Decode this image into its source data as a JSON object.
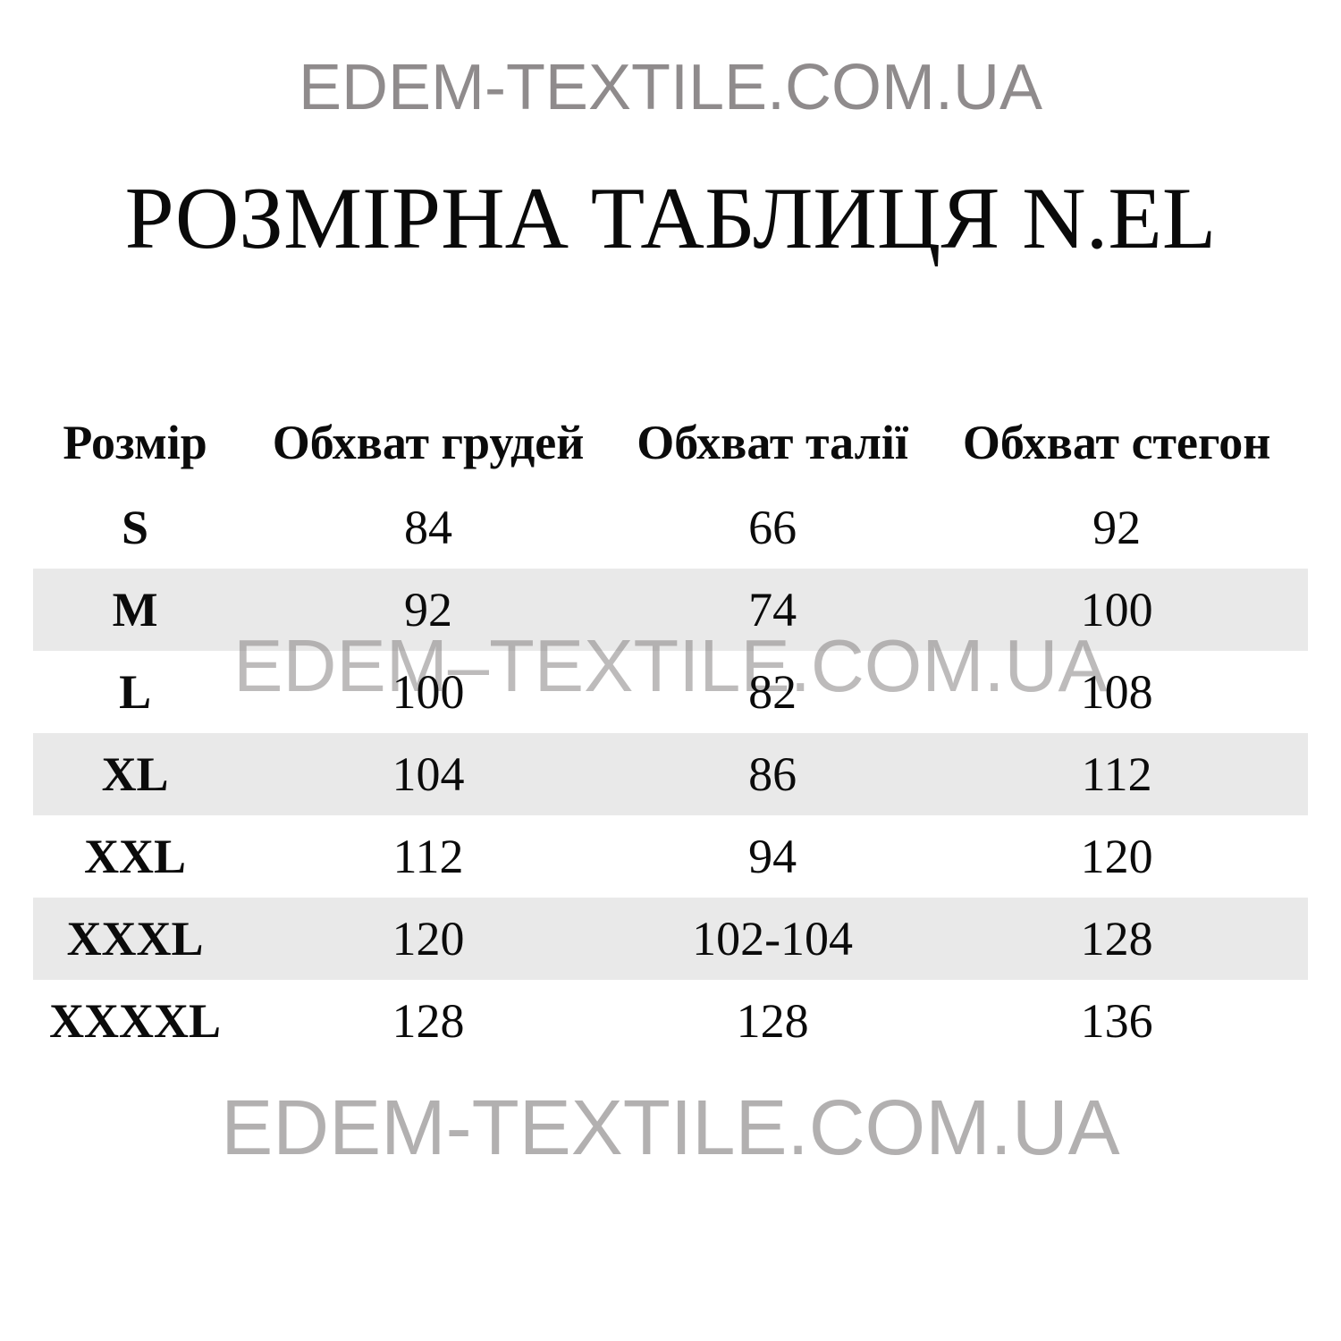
{
  "page": {
    "top_watermark": "EDEM-TEXTILE.COM.UA",
    "title": "РОЗМІРНА ТАБЛИЦЯ N.EL",
    "middle_watermark": "EDEM–TEXTILE.COM.UA",
    "bottom_watermark": "EDEM-TEXTILE.COM.UA"
  },
  "table": {
    "headers": [
      "Розмір",
      "Обхват грудей",
      "Обхват талії",
      "Обхват стегон"
    ],
    "rows": [
      {
        "cells": [
          "S",
          "84",
          "66",
          "92"
        ],
        "shaded": false
      },
      {
        "cells": [
          "M",
          "92",
          "74",
          "100"
        ],
        "shaded": true
      },
      {
        "cells": [
          "L",
          "100",
          "82",
          "108"
        ],
        "shaded": false
      },
      {
        "cells": [
          "XL",
          "104",
          "86",
          "112"
        ],
        "shaded": true
      },
      {
        "cells": [
          "XXL",
          "112",
          "94",
          "120"
        ],
        "shaded": false
      },
      {
        "cells": [
          "XXXL",
          "120",
          "102-104",
          "128"
        ],
        "shaded": true
      },
      {
        "cells": [
          "XXXXL",
          "128",
          "128",
          "136"
        ],
        "shaded": false
      }
    ]
  },
  "colors": {
    "row_shade": "#e9e9e9",
    "top_watermark_gray": "#8f8b8c",
    "middle_watermark_gray": "#c6c4c4",
    "bottom_watermark_gray": "#b2b0b0",
    "text": "#0b0b0b",
    "background": "#ffffff"
  },
  "chart_data": {
    "type": "table",
    "title": "РОЗМІРНА ТАБЛИЦЯ N.EL",
    "columns": [
      "Розмір",
      "Обхват грудей",
      "Обхват талії",
      "Обхват стегон"
    ],
    "rows": [
      [
        "S",
        "84",
        "66",
        "92"
      ],
      [
        "M",
        "92",
        "74",
        "100"
      ],
      [
        "L",
        "100",
        "82",
        "108"
      ],
      [
        "XL",
        "104",
        "86",
        "112"
      ],
      [
        "XXL",
        "112",
        "94",
        "120"
      ],
      [
        "XXXL",
        "120",
        "102-104",
        "128"
      ],
      [
        "XXXXL",
        "128",
        "128",
        "136"
      ]
    ]
  }
}
